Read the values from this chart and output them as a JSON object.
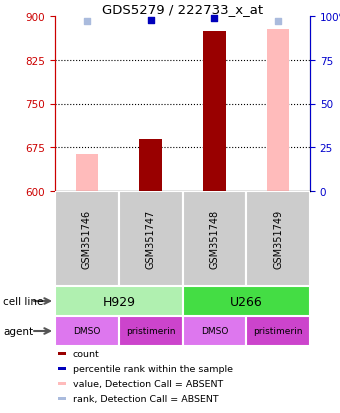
{
  "title": "GDS5279 / 222733_x_at",
  "samples": [
    "GSM351746",
    "GSM351747",
    "GSM351748",
    "GSM351749"
  ],
  "bar_values_dark": [
    null,
    690,
    875,
    null
  ],
  "bar_values_pink": [
    663,
    null,
    null,
    877
  ],
  "pct_dark": [
    null,
    98,
    99,
    null
  ],
  "pct_absent": [
    97,
    null,
    null,
    97
  ],
  "ylim_left": [
    600,
    900
  ],
  "yticks_left": [
    600,
    675,
    750,
    825,
    900
  ],
  "yticks_right_vals": [
    0,
    25,
    50,
    75,
    100
  ],
  "yticks_right_labels": [
    "0",
    "25",
    "50",
    "75",
    "100%"
  ],
  "cell_line_labels": [
    "H929",
    "U266"
  ],
  "cell_line_colors": [
    "#b0f0b0",
    "#44dd44"
  ],
  "agent_labels": [
    "DMSO",
    "pristimerin",
    "DMSO",
    "pristimerin"
  ],
  "agent_colors": [
    "#dd77ee",
    "#cc44cc",
    "#dd77ee",
    "#cc44cc"
  ],
  "dark_red": "#990000",
  "light_pink": "#ffbbbb",
  "dark_blue": "#0000bb",
  "light_blue": "#aabbdd",
  "left_axis_color": "#cc0000",
  "right_axis_color": "#0000cc",
  "legend_labels": [
    "count",
    "percentile rank within the sample",
    "value, Detection Call = ABSENT",
    "rank, Detection Call = ABSENT"
  ],
  "legend_colors": [
    "#990000",
    "#0000bb",
    "#ffbbbb",
    "#aabbdd"
  ]
}
